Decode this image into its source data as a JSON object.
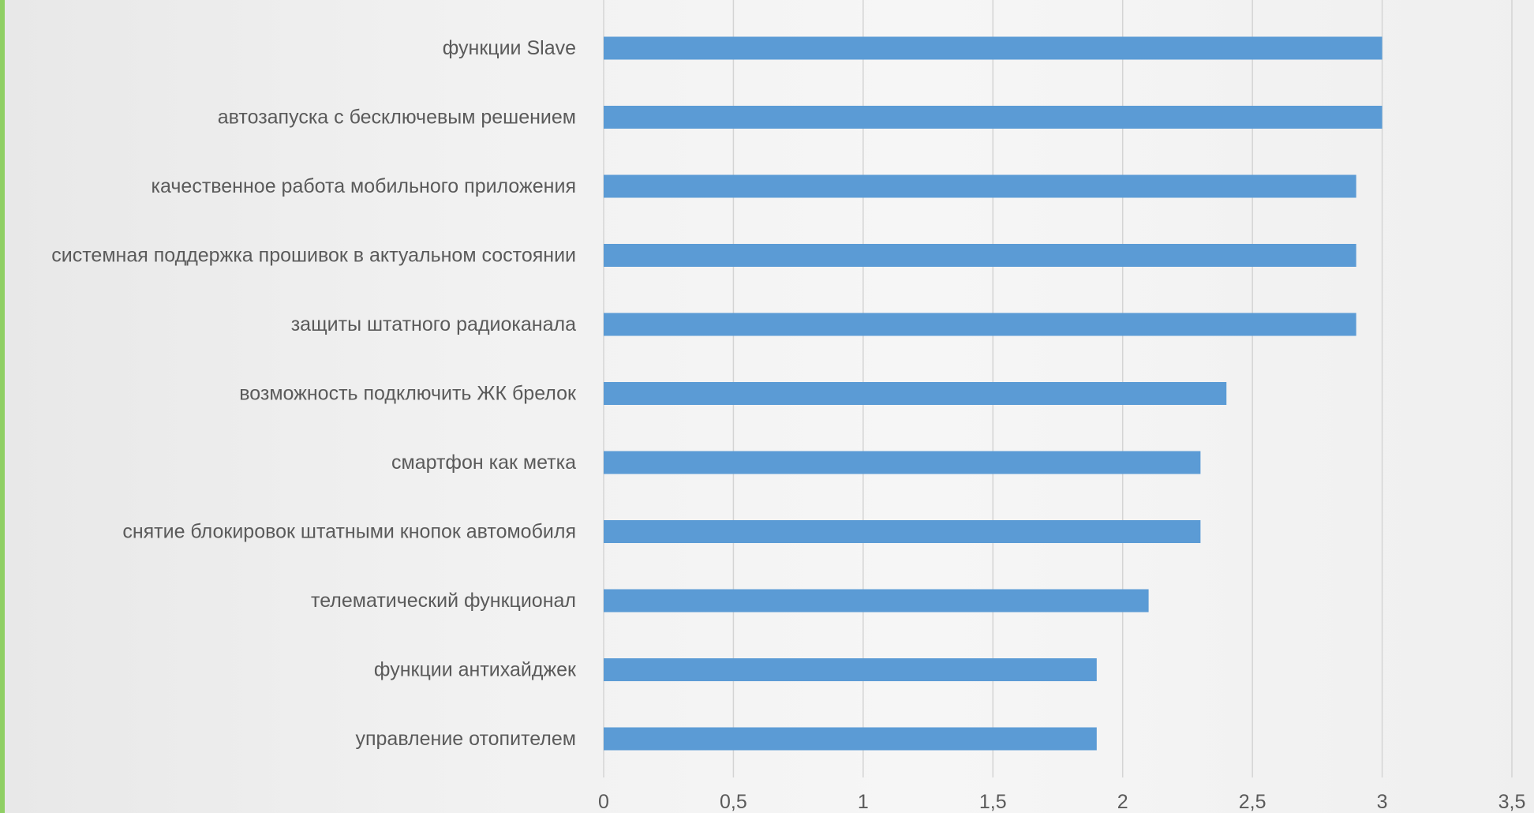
{
  "chart_data": {
    "type": "bar",
    "orientation": "horizontal",
    "categories": [
      "функции Slave",
      "автозапуска с бесключевым решением",
      "качественное работа мобильного приложения",
      "системная поддержка прошивок в актуальном состоянии",
      "защиты штатного радиоканала",
      "возможность подключить ЖК брелок",
      "смартфон как метка",
      "снятие блокировок штатными кнопок автомобиля",
      "телематический функционал",
      "функции антихайджек",
      "управление отопителем"
    ],
    "values": [
      3.0,
      3.0,
      2.9,
      2.9,
      2.9,
      2.4,
      2.3,
      2.3,
      2.1,
      1.9,
      1.9
    ],
    "xlim": [
      0,
      3.5
    ],
    "xticks": [
      0,
      0.5,
      1,
      1.5,
      2,
      2.5,
      3,
      3.5
    ],
    "xtick_labels": [
      "0",
      "0,5",
      "1",
      "1,5",
      "2",
      "2,5",
      "3",
      "3,5"
    ],
    "grid": "vertical",
    "bar_color": "#5b9bd5",
    "legend": "none"
  }
}
